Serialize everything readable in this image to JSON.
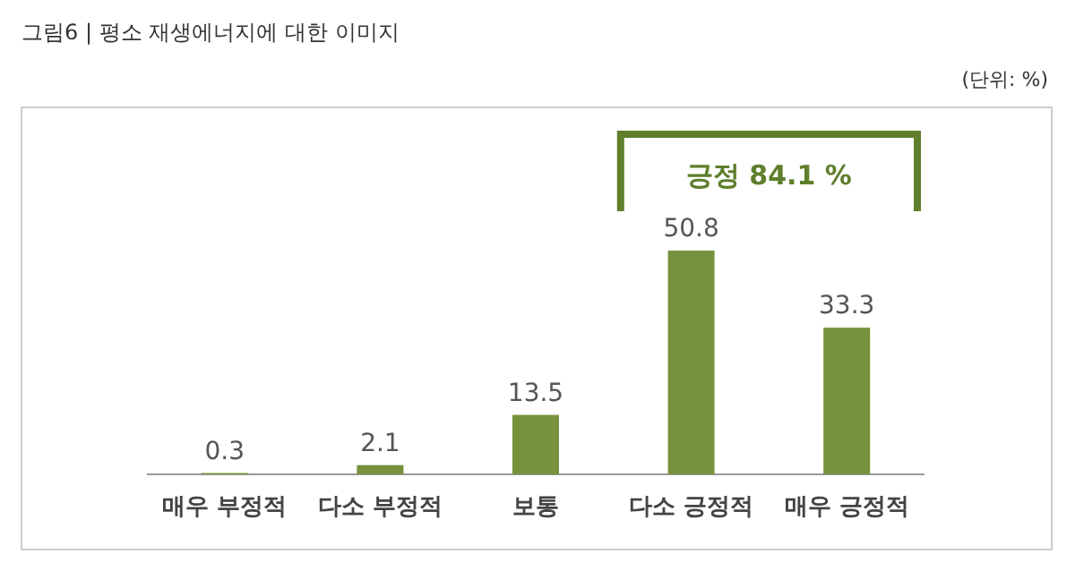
{
  "chart_data": {
    "type": "bar",
    "title": "그림6 | 평소 재생에너지에 대한 이미지",
    "categories": [
      "매우 부정적",
      "다소 부정적",
      "보통",
      "다소 긍정적",
      "매우 긍정적"
    ],
    "values": [
      0.3,
      2.1,
      13.5,
      50.8,
      33.3
    ],
    "color": "#76923c",
    "data_labels": true,
    "annotations": [
      "(단위: %)",
      "긍정 84.1 %"
    ]
  }
}
